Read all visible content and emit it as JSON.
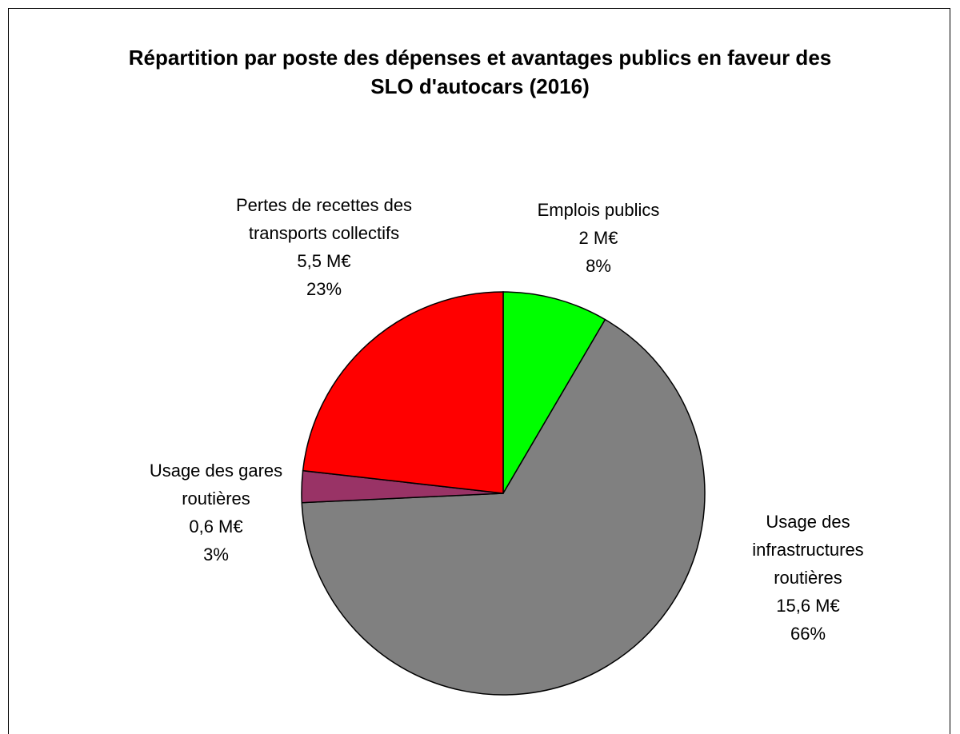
{
  "chart_data": {
    "type": "pie",
    "title": "Répartition par poste des dépenses et avantages publics en faveur des SLO d'autocars (2016)",
    "categories": [
      "Emplois publics",
      "Usage des infrastructures routières",
      "Usage des gares routières",
      "Pertes de recettes des transports collectifs"
    ],
    "values": [
      2,
      15.6,
      0.6,
      5.5
    ],
    "value_labels": [
      "2 M€",
      "15,6 M€",
      "0,6 M€",
      "5,5 M€"
    ],
    "percent_labels": [
      "8%",
      "66%",
      "3%",
      "23%"
    ],
    "colors": [
      "#00ff00",
      "#808080",
      "#993366",
      "#ff0000"
    ]
  }
}
